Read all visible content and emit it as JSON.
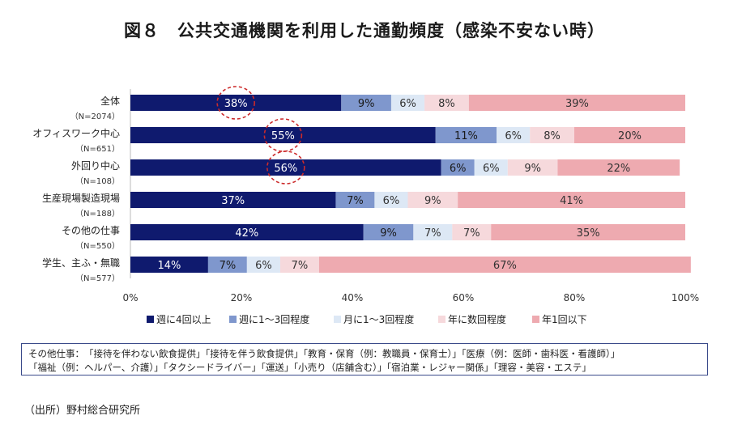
{
  "title": "図８　公共交通機関を利用した通勤頻度（感染不安ない時）",
  "chart_data": {
    "type": "bar",
    "orientation": "horizontal",
    "stacked": true,
    "percent": true,
    "categories": [
      {
        "label": "全体",
        "n": "（N=2074）"
      },
      {
        "label": "オフィスワーク中心",
        "n": "（N=651）"
      },
      {
        "label": "外回り中心",
        "n": "（N=108）"
      },
      {
        "label": "生産現場製造現場",
        "n": "（N=188）"
      },
      {
        "label": "その他の仕事",
        "n": "（N=550）"
      },
      {
        "label": "学生、主ふ・無職",
        "n": "（N=577）"
      }
    ],
    "series": [
      {
        "name": "週に4回以上",
        "color": "#0f1a6e",
        "label_color": "#ffffff",
        "values": [
          38,
          55,
          56,
          37,
          42,
          14
        ]
      },
      {
        "name": "週に1〜3回程度",
        "color": "#7f97cd",
        "label_color": "#1a1a1a",
        "values": [
          9,
          11,
          6,
          7,
          9,
          7
        ]
      },
      {
        "name": "月に1〜3回程度",
        "color": "#dde8f5",
        "label_color": "#333333",
        "values": [
          6,
          6,
          6,
          6,
          7,
          6
        ]
      },
      {
        "name": "年に数回程度",
        "color": "#f6d9dc",
        "label_color": "#333333",
        "values": [
          8,
          8,
          9,
          9,
          7,
          7
        ]
      },
      {
        "name": "年1回以下",
        "color": "#eeaab0",
        "label_color": "#333333",
        "values": [
          39,
          20,
          22,
          41,
          35,
          67
        ]
      }
    ],
    "x_ticks": [
      "0%",
      "20%",
      "40%",
      "60%",
      "80%",
      "100%"
    ],
    "xlim": [
      0,
      100
    ],
    "legend_position": "bottom",
    "highlighted": [
      {
        "category_index": 0,
        "series_index": 0
      },
      {
        "category_index": 1,
        "series_index": 0
      },
      {
        "category_index": 2,
        "series_index": 0
      }
    ],
    "highlight_color": "#cc2a2a"
  },
  "notes": {
    "line1": "その他仕事：　「接待を伴わない飲食提供」「接待を伴う飲食提供」「教育・保育（例：教職員・保育士）」「医療（例：医師・歯科医・看護師）」",
    "line2": "「福祉（例：ヘルパー、介護）」「タクシードライバー」「運送」「小売り（店舗含む）」「宿泊業・レジャー関係」「理容・美容・エステ」"
  },
  "source": "（出所）野村総合研究所"
}
